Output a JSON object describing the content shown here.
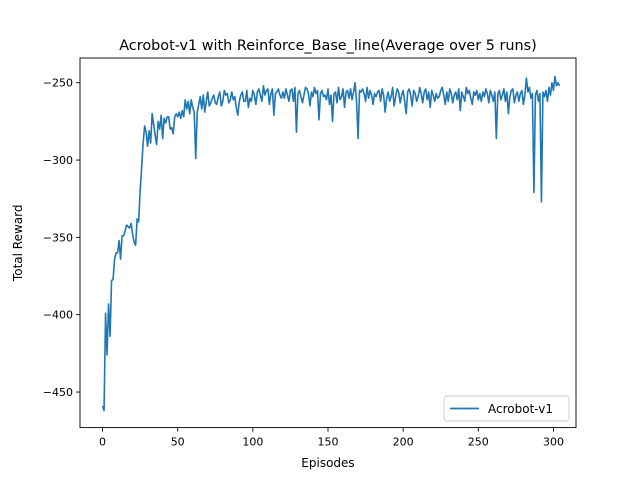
{
  "chart_data": {
    "type": "line",
    "title": "Acrobot-v1 with Reinforce_Base_line(Average over 5 runs)",
    "xlabel": "Episodes",
    "ylabel": "Total Reward",
    "xlim": [
      -15,
      315
    ],
    "ylim": [
      -473,
      -234
    ],
    "xticks": [
      0,
      50,
      100,
      150,
      200,
      250,
      300
    ],
    "yticks": [
      -450,
      -400,
      -350,
      -300,
      -250
    ],
    "grid": false,
    "legend_position": "lower-right",
    "series": [
      {
        "name": "Acrobot-v1",
        "color": "#1f77b4",
        "x_start": 0,
        "x_step": 1,
        "values": [
          -459,
          -462,
          -399,
          -426,
          -393,
          -414,
          -378,
          -377,
          -364,
          -360,
          -360,
          -352,
          -364,
          -349,
          -349,
          -346,
          -342,
          -343,
          -344,
          -341,
          -348,
          -353,
          -355,
          -338,
          -340,
          -320,
          -305,
          -289,
          -278,
          -282,
          -291,
          -281,
          -289,
          -270,
          -277,
          -284,
          -290,
          -275,
          -280,
          -271,
          -286,
          -273,
          -276,
          -272,
          -272,
          -280,
          -279,
          -283,
          -272,
          -270,
          -272,
          -269,
          -273,
          -268,
          -272,
          -261,
          -267,
          -262,
          -270,
          -261,
          -266,
          -269,
          -299,
          -269,
          -264,
          -259,
          -267,
          -258,
          -269,
          -262,
          -256,
          -265,
          -263,
          -260,
          -258,
          -263,
          -264,
          -259,
          -256,
          -265,
          -262,
          -255,
          -258,
          -257,
          -263,
          -261,
          -256,
          -261,
          -259,
          -266,
          -271,
          -262,
          -258,
          -256,
          -262,
          -262,
          -255,
          -266,
          -260,
          -262,
          -255,
          -258,
          -264,
          -256,
          -254,
          -258,
          -262,
          -252,
          -258,
          -255,
          -254,
          -264,
          -257,
          -254,
          -271,
          -257,
          -256,
          -254,
          -258,
          -260,
          -256,
          -260,
          -254,
          -258,
          -262,
          -255,
          -254,
          -262,
          -253,
          -282,
          -257,
          -255,
          -259,
          -263,
          -258,
          -253,
          -254,
          -257,
          -265,
          -256,
          -259,
          -253,
          -257,
          -255,
          -274,
          -257,
          -255,
          -259,
          -258,
          -261,
          -254,
          -264,
          -258,
          -275,
          -257,
          -256,
          -263,
          -253,
          -261,
          -259,
          -254,
          -266,
          -256,
          -255,
          -260,
          -254,
          -261,
          -256,
          -250,
          -262,
          -286,
          -255,
          -256,
          -254,
          -257,
          -262,
          -253,
          -260,
          -255,
          -258,
          -264,
          -257,
          -259,
          -256,
          -255,
          -262,
          -254,
          -258,
          -269,
          -260,
          -256,
          -262,
          -259,
          -253,
          -265,
          -259,
          -254,
          -256,
          -263,
          -258,
          -255,
          -262,
          -270,
          -256,
          -254,
          -258,
          -265,
          -255,
          -257,
          -262,
          -259,
          -253,
          -257,
          -263,
          -256,
          -254,
          -261,
          -256,
          -266,
          -255,
          -258,
          -262,
          -257,
          -260,
          -259,
          -255,
          -253,
          -258,
          -264,
          -256,
          -262,
          -254,
          -257,
          -263,
          -258,
          -256,
          -261,
          -254,
          -268,
          -256,
          -259,
          -262,
          -253,
          -257,
          -255,
          -260,
          -264,
          -256,
          -258,
          -255,
          -261,
          -257,
          -262,
          -256,
          -259,
          -254,
          -257,
          -263,
          -255,
          -258,
          -262,
          -256,
          -286,
          -257,
          -255,
          -261,
          -258,
          -254,
          -262,
          -256,
          -270,
          -259,
          -255,
          -254,
          -263,
          -258,
          -256,
          -262,
          -257,
          -255,
          -264,
          -258,
          -247,
          -256,
          -253,
          -260,
          -257,
          -321,
          -258,
          -255,
          -262,
          -257,
          -327,
          -256,
          -259,
          -255,
          -262,
          -253,
          -258,
          -250,
          -255,
          -246,
          -252,
          -250,
          -252
        ]
      }
    ]
  }
}
